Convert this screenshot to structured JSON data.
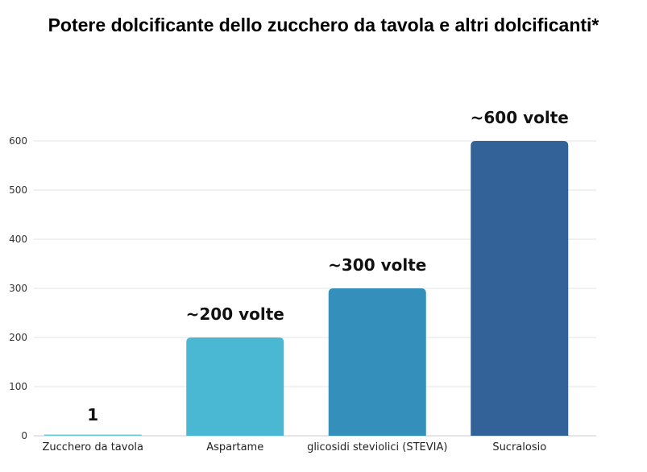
{
  "chart_data": {
    "type": "bar",
    "title": "Potere dolcificante dello zucchero da tavola e altri dolcificanti*",
    "xlabel": "",
    "ylabel": "",
    "ylim": [
      0,
      600
    ],
    "yticks": [
      0,
      100,
      200,
      300,
      400,
      500,
      600
    ],
    "grid": true,
    "categories": [
      "Zucchero da tavola",
      "Aspartame",
      "glicosidi steviolici (STEVIA)",
      "Sucralosio"
    ],
    "values": [
      1,
      200,
      300,
      600
    ],
    "data_labels": [
      "1",
      "~200 volte",
      "~300 volte",
      "~600 volte"
    ],
    "colors": [
      "#6cc9da",
      "#4ab8d3",
      "#348fbb",
      "#336298"
    ]
  }
}
